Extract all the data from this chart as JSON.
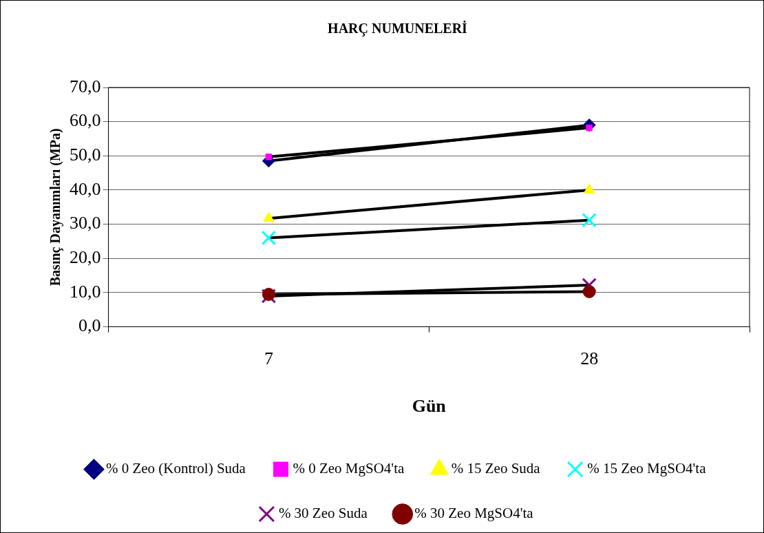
{
  "chart_data": {
    "type": "line",
    "title": "HARÇ NUMUNELERİ",
    "xlabel": "Gün",
    "ylabel": "Basınç Dayanımları (MPa)",
    "categories": [
      "7",
      "28"
    ],
    "ylim": [
      0,
      70
    ],
    "yticks": [
      {
        "value": 0,
        "label": "0,0"
      },
      {
        "value": 10,
        "label": "10,0"
      },
      {
        "value": 20,
        "label": "20,0"
      },
      {
        "value": 30,
        "label": "30,0"
      },
      {
        "value": 40,
        "label": "40,0"
      },
      {
        "value": 50,
        "label": "50,0"
      },
      {
        "value": 60,
        "label": "60,0"
      },
      {
        "value": 70,
        "label": "70,0"
      }
    ],
    "grid": "y",
    "legend": "bottom",
    "line_style": "solid",
    "series": [
      {
        "name": "% 0 Zeo (Kontrol) Suda",
        "color": "#000080",
        "marker": "diamond",
        "values": [
          48.5,
          59.0
        ]
      },
      {
        "name": "% 0 Zeo MgSO4'ta",
        "color": "#ff00ff",
        "marker": "square",
        "values": [
          49.7,
          58.2
        ]
      },
      {
        "name": "% 15 Zeo Suda",
        "color": "#ffff00",
        "marker": "triangle",
        "values": [
          31.7,
          40.0
        ]
      },
      {
        "name": "% 15 Zeo MgSO4'ta",
        "color": "#00ffff",
        "marker": "cross",
        "values": [
          26.0,
          31.2
        ]
      },
      {
        "name": "% 30 Zeo Suda",
        "color": "#800080",
        "marker": "cross",
        "values": [
          9.0,
          12.2
        ]
      },
      {
        "name": "% 30 Zeo MgSO4'ta",
        "color": "#800000",
        "marker": "circle",
        "values": [
          9.5,
          10.3
        ]
      }
    ]
  }
}
